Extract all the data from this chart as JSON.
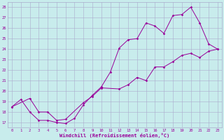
{
  "xlabel": "Windchill (Refroidissement éolien,°C)",
  "bg_color": "#c8ecec",
  "line_color": "#990099",
  "grid_color": "#aaaacc",
  "xlim": [
    -0.5,
    23.5
  ],
  "ylim": [
    16.5,
    28.5
  ],
  "xticks": [
    0,
    1,
    2,
    3,
    4,
    5,
    6,
    7,
    8,
    9,
    10,
    11,
    12,
    13,
    14,
    15,
    16,
    17,
    18,
    19,
    20,
    21,
    22,
    23
  ],
  "yticks": [
    17,
    18,
    19,
    20,
    21,
    22,
    23,
    24,
    25,
    26,
    27,
    28
  ],
  "line1_x": [
    0,
    1,
    2,
    3,
    4,
    5,
    6,
    7,
    8,
    9,
    10,
    11,
    12,
    13,
    14,
    15,
    16,
    17,
    18,
    19,
    20,
    21,
    22,
    23
  ],
  "line1_y": [
    18.5,
    19.2,
    18.0,
    17.2,
    17.2,
    17.0,
    16.9,
    17.4,
    18.7,
    19.6,
    20.4,
    21.8,
    24.1,
    24.9,
    25.0,
    26.5,
    26.2,
    25.5,
    27.2,
    27.3,
    28.0,
    26.5,
    24.5,
    24.0
  ],
  "line2_x": [
    0,
    2,
    3,
    4,
    5,
    6,
    8,
    9,
    10,
    12,
    13,
    14,
    15,
    16,
    17,
    18,
    19,
    20,
    21,
    22,
    23
  ],
  "line2_y": [
    18.5,
    19.3,
    18.0,
    18.0,
    17.2,
    17.3,
    18.9,
    19.5,
    20.3,
    20.2,
    20.6,
    21.3,
    21.0,
    22.3,
    22.3,
    22.8,
    23.4,
    23.6,
    23.2,
    23.8,
    24.0
  ]
}
